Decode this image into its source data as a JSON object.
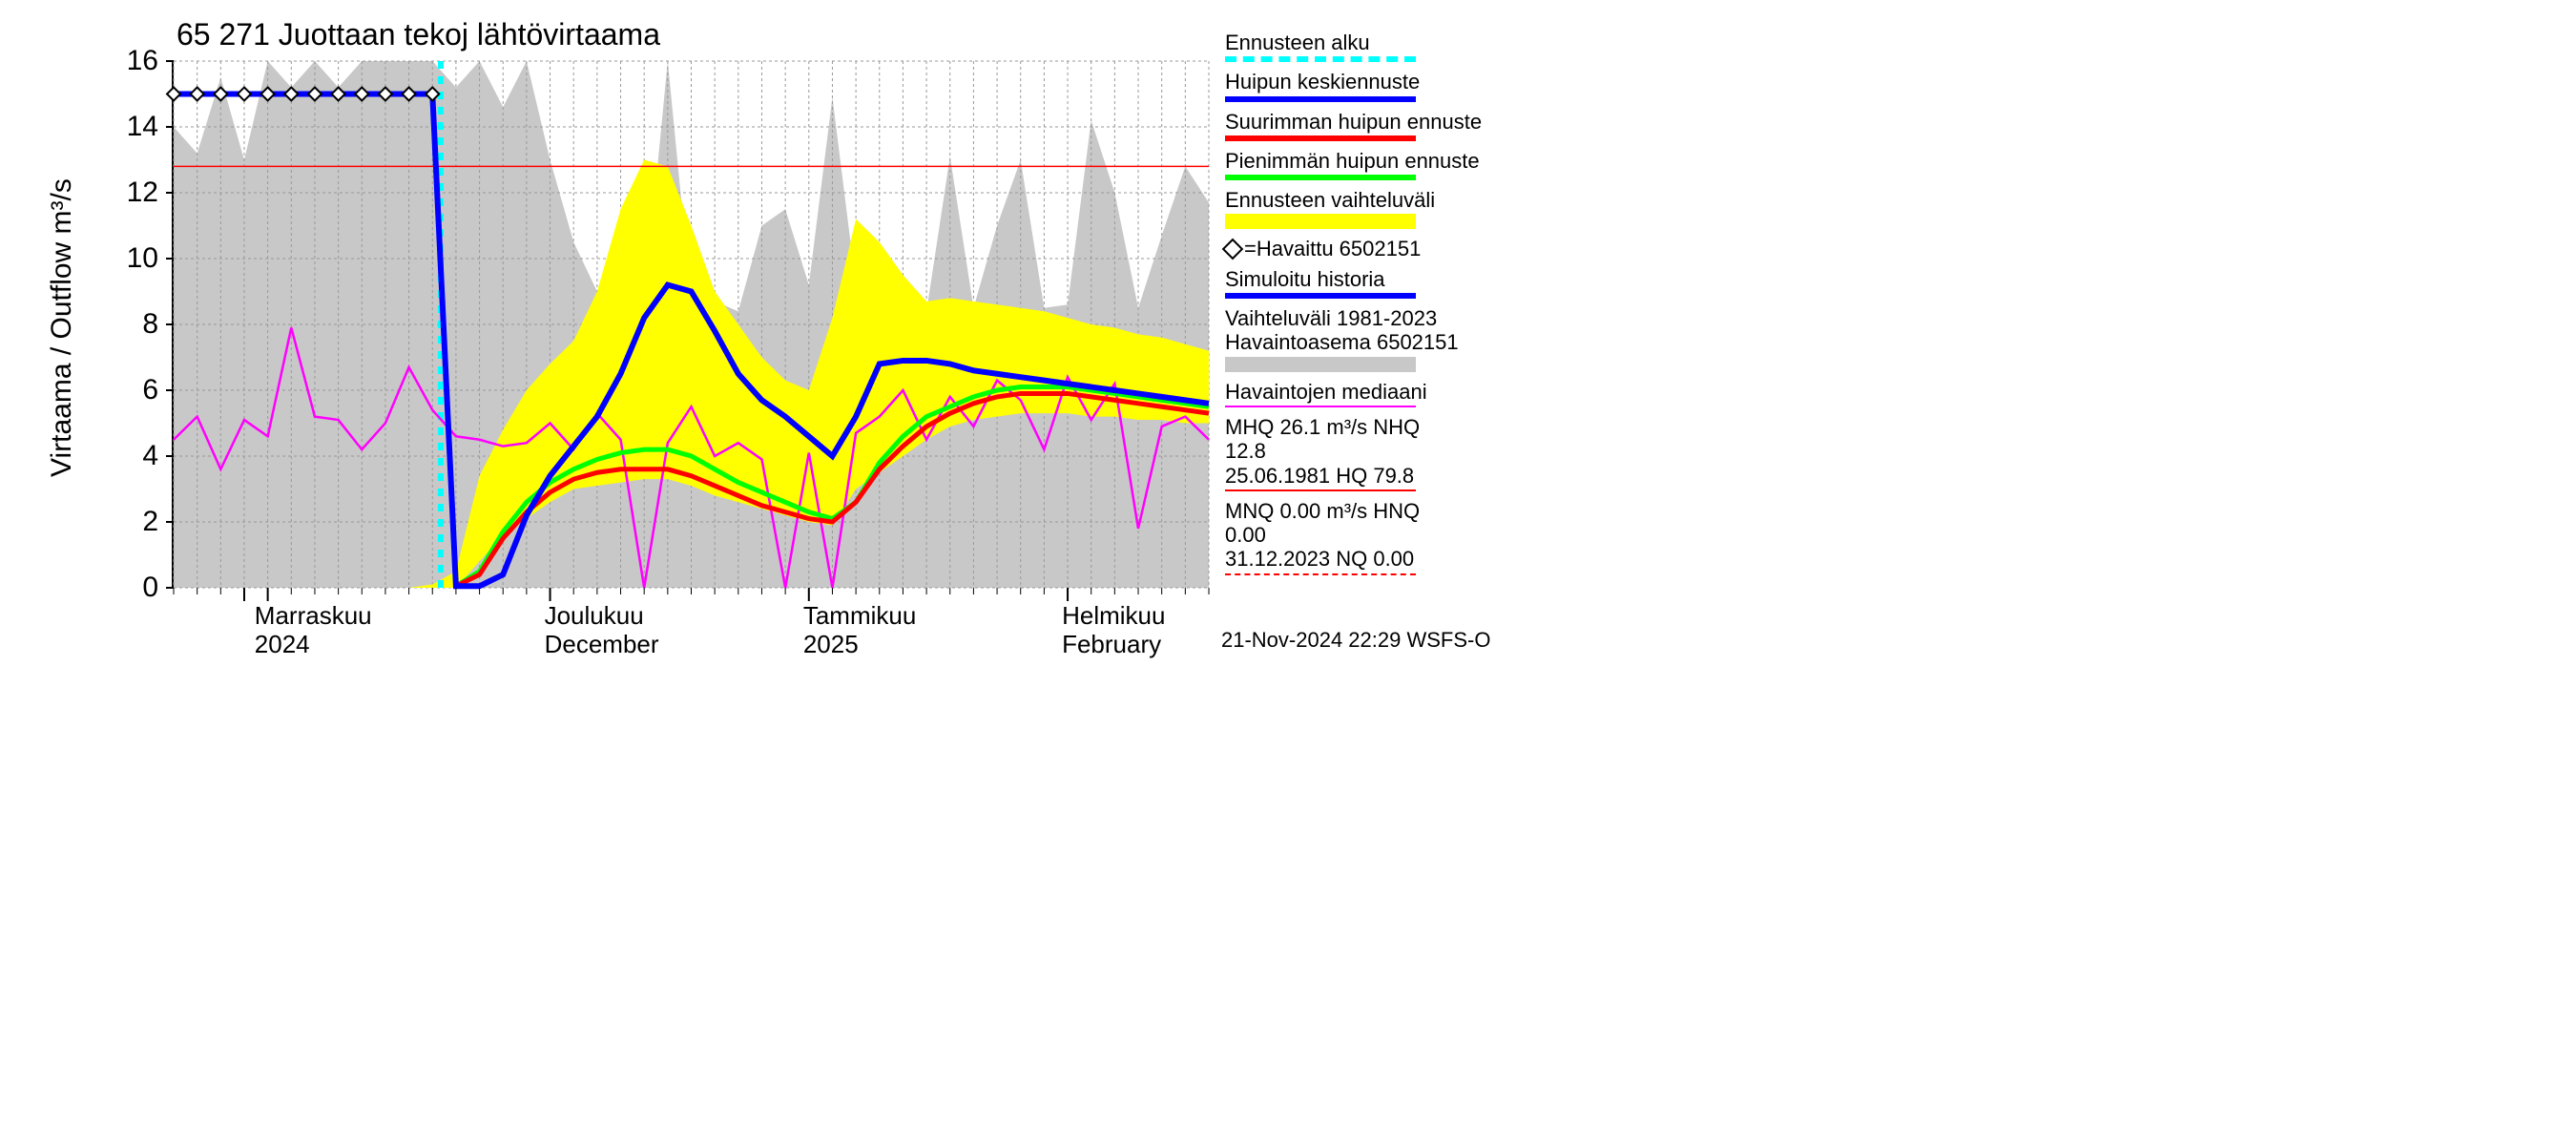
{
  "title": "65 271 Juottaan tekoj lähtövirtaama",
  "ylabel": "Virtaama / Outflow    m³/s",
  "timestamp": "21-Nov-2024 22:29 WSFS-O",
  "axes": {
    "ylim": [
      0,
      16
    ],
    "yticks": [
      0,
      2,
      4,
      6,
      8,
      10,
      12,
      14,
      16
    ],
    "xcats": [
      {
        "main": "Marraskuu",
        "sub": "2024",
        "x": 0.08
      },
      {
        "main": "Joulukuu",
        "sub": "December",
        "x": 0.36
      },
      {
        "main": "Tammikuu",
        "sub": "2025",
        "x": 0.61
      },
      {
        "main": "Helmikuu",
        "sub": "February",
        "x": 0.86
      }
    ],
    "minor_per_major": 4,
    "grid_color": "#999999",
    "grid_dash": "3,3"
  },
  "colors": {
    "bg": "#ffffff",
    "grey_band": "#c8c8c8",
    "yellow_band": "#ffff00",
    "blue": "#0000ff",
    "red": "#ff0000",
    "green": "#00ff00",
    "cyan": "#00ffff",
    "magenta": "#ff00ff",
    "thin_red": "#ff0000",
    "black": "#000000"
  },
  "ref_lines": {
    "hq_line_y": 12.8,
    "nq_line_y": 0.0
  },
  "forecast_start_x": 0.258,
  "observed_level": 15.0,
  "grey_top": [
    14.0,
    13.2,
    15.5,
    13.0,
    16.0,
    15.2,
    16.0,
    15.2,
    16.0,
    16.0,
    16.0,
    16.0,
    15.2,
    16.0,
    14.6,
    16.0,
    13.0,
    10.5,
    9.0,
    8.7,
    8.6,
    16.0,
    8.7,
    8.7,
    8.4,
    11.0,
    11.5,
    9.2,
    14.9,
    9.2,
    8.7,
    9.2,
    8.4,
    13.1,
    8.5,
    11.0,
    13.0,
    8.5,
    8.6,
    14.2,
    12.0,
    8.5,
    10.7,
    12.8,
    11.7
  ],
  "yellow_top": [
    0,
    0,
    0,
    0,
    0,
    0,
    0,
    0,
    0,
    0,
    0,
    0.1,
    0.5,
    3.4,
    4.8,
    6.0,
    6.8,
    7.5,
    9.0,
    11.5,
    13.0,
    12.8,
    11.0,
    9.0,
    8.0,
    7.0,
    6.3,
    6.0,
    8.2,
    11.2,
    10.5,
    9.5,
    8.7,
    8.8,
    8.7,
    8.6,
    8.5,
    8.4,
    8.2,
    8.0,
    7.9,
    7.7,
    7.6,
    7.4,
    7.2
  ],
  "yellow_bot": [
    0,
    0,
    0,
    0,
    0,
    0,
    0,
    0,
    0,
    0,
    0,
    0.0,
    0.0,
    0.8,
    1.6,
    2.1,
    2.6,
    3.0,
    3.1,
    3.2,
    3.3,
    3.3,
    3.1,
    2.8,
    2.6,
    2.4,
    2.2,
    2.0,
    1.9,
    3.0,
    3.5,
    4.0,
    4.5,
    4.9,
    5.1,
    5.2,
    5.3,
    5.3,
    5.3,
    5.2,
    5.2,
    5.1,
    5.1,
    5.0,
    5.0
  ],
  "blue_line": [
    15,
    15,
    15,
    15,
    15,
    15,
    15,
    15,
    15,
    15,
    15,
    15,
    0.05,
    0.05,
    0.4,
    2.2,
    3.4,
    4.3,
    5.2,
    6.5,
    8.2,
    9.2,
    9.0,
    7.8,
    6.5,
    5.7,
    5.2,
    4.6,
    4.0,
    5.2,
    6.8,
    6.9,
    6.9,
    6.8,
    6.6,
    6.5,
    6.4,
    6.3,
    6.2,
    6.1,
    6.0,
    5.9,
    5.8,
    5.7,
    5.6
  ],
  "green_line": [
    null,
    null,
    null,
    null,
    null,
    null,
    null,
    null,
    null,
    null,
    null,
    null,
    0.05,
    0.5,
    1.7,
    2.6,
    3.2,
    3.6,
    3.9,
    4.1,
    4.2,
    4.2,
    4.0,
    3.6,
    3.2,
    2.9,
    2.6,
    2.3,
    2.1,
    2.6,
    3.8,
    4.6,
    5.2,
    5.5,
    5.8,
    6.0,
    6.1,
    6.1,
    6.1,
    6.0,
    5.9,
    5.8,
    5.7,
    5.6,
    5.5
  ],
  "red_line": [
    null,
    null,
    null,
    null,
    null,
    null,
    null,
    null,
    null,
    null,
    null,
    null,
    0.05,
    0.4,
    1.5,
    2.3,
    2.9,
    3.3,
    3.5,
    3.6,
    3.6,
    3.6,
    3.4,
    3.1,
    2.8,
    2.5,
    2.3,
    2.1,
    2.0,
    2.6,
    3.6,
    4.3,
    4.9,
    5.3,
    5.6,
    5.8,
    5.9,
    5.9,
    5.9,
    5.8,
    5.7,
    5.6,
    5.5,
    5.4,
    5.3
  ],
  "magenta_line": [
    4.5,
    5.2,
    3.6,
    5.1,
    4.6,
    7.9,
    5.2,
    5.1,
    4.2,
    5.0,
    6.7,
    5.4,
    4.6,
    4.5,
    4.3,
    4.4,
    5.0,
    4.2,
    5.3,
    4.5,
    0.0,
    4.4,
    5.5,
    4.0,
    4.4,
    3.9,
    0.0,
    4.1,
    0.0,
    4.7,
    5.2,
    6.0,
    4.5,
    5.8,
    4.9,
    6.3,
    5.7,
    4.2,
    6.4,
    5.1,
    6.2,
    1.8,
    4.9,
    5.2,
    4.5
  ],
  "legend": {
    "forecast_start": "Ennusteen alku",
    "peak_mean": "Huipun keskiennuste",
    "peak_max": "Suurimman huipun ennuste",
    "peak_min": "Pienimmän huipun ennuste",
    "forecast_range": "Ennusteen vaihteluväli",
    "observed": "=Havaittu 6502151",
    "sim_history": "Simuloitu historia",
    "hist_range_a": "Vaihteluväli 1981-2023",
    "hist_range_b": " Havaintoasema 6502151",
    "obs_median": "Havaintojen mediaani",
    "mhq_a": "MHQ 26.1 m³/s NHQ 12.8",
    "mhq_b": "25.06.1981 HQ 79.8",
    "mnq_a": "MNQ 0.00 m³/s HNQ 0.00",
    "mnq_b": "31.12.2023 NQ 0.00"
  }
}
